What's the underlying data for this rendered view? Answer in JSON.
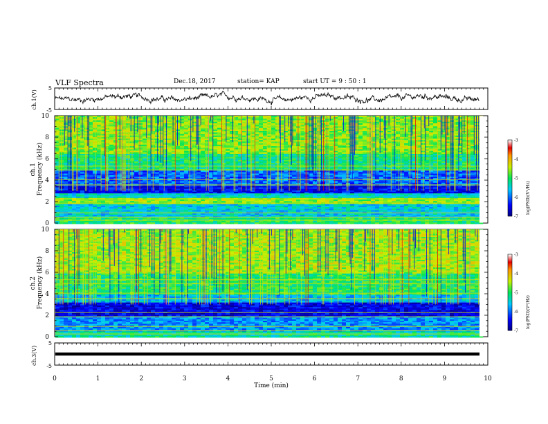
{
  "header": {
    "title": "VLF Spectra",
    "date": "Dec.18, 2017",
    "station": "station= KAP",
    "start": "start  UT =  9 : 50 : 1"
  },
  "chart_data": [
    {
      "type": "line",
      "panel": "ch1-waveform",
      "ylabel": "ch.1(V)",
      "xlim": [
        0,
        10
      ],
      "ylim": [
        -5,
        5
      ],
      "yticks": [
        "5",
        "-5"
      ],
      "x_end": 9.85,
      "description_level": [
        -1,
        1.5
      ]
    },
    {
      "type": "heatmap",
      "panel": "ch1-spectrogram",
      "ylabel": "ch.1",
      "ylabel2": "Frequency (kHz)",
      "xlim": [
        0,
        10
      ],
      "ylim": [
        0,
        10
      ],
      "yticks": [
        "0",
        "2",
        "4",
        "6",
        "8",
        "10"
      ],
      "colorbar": {
        "label": "log(PSD)(V²/Hz)",
        "range": [
          -7,
          -3
        ],
        "ticks": [
          "-3",
          "-4",
          "-5",
          "-6",
          "-7"
        ]
      },
      "bands_khz": [
        {
          "from": 0,
          "to": 0.6,
          "level": -5.0
        },
        {
          "from": 0.6,
          "to": 1.8,
          "level": -5.5
        },
        {
          "from": 1.8,
          "to": 2.4,
          "level": -4.6
        },
        {
          "from": 2.4,
          "to": 2.9,
          "level": -5.4
        },
        {
          "from": 2.9,
          "to": 3.5,
          "level": -6.4
        },
        {
          "from": 3.5,
          "to": 5.0,
          "level": -6.0
        },
        {
          "from": 5.0,
          "to": 6.5,
          "level": -5.1
        },
        {
          "from": 6.5,
          "to": 10,
          "level": -4.6
        }
      ]
    },
    {
      "type": "heatmap",
      "panel": "ch2-spectrogram",
      "ylabel": "ch.2",
      "ylabel2": "Frequency (kHz)",
      "xlim": [
        0,
        10
      ],
      "ylim": [
        0,
        10
      ],
      "yticks": [
        "0",
        "2",
        "4",
        "6",
        "8",
        "10"
      ],
      "colorbar": {
        "label": "log(PSD)(V²/Hz)",
        "range": [
          -7,
          -3
        ],
        "ticks": [
          "-3",
          "-4",
          "-5",
          "-6",
          "-7"
        ]
      },
      "bands_khz": [
        {
          "from": 0,
          "to": 0.5,
          "level": -5.2
        },
        {
          "from": 0.5,
          "to": 2.0,
          "level": -5.8
        },
        {
          "from": 2.0,
          "to": 3.3,
          "level": -6.5
        },
        {
          "from": 3.3,
          "to": 4.0,
          "level": -5.6
        },
        {
          "from": 4.0,
          "to": 6.0,
          "level": -5.0
        },
        {
          "from": 6.0,
          "to": 10,
          "level": -4.5
        }
      ]
    },
    {
      "type": "line",
      "panel": "ch3-waveform",
      "ylabel": "ch.3(V)",
      "xlim": [
        0,
        10
      ],
      "ylim": [
        -5,
        5
      ],
      "yticks": [
        "5",
        "-5"
      ],
      "x_end": 9.85,
      "value": 0
    }
  ],
  "xaxis": {
    "label": "Time (min)",
    "ticks": [
      "0",
      "1",
      "2",
      "3",
      "4",
      "5",
      "6",
      "7",
      "8",
      "9",
      "10"
    ]
  }
}
